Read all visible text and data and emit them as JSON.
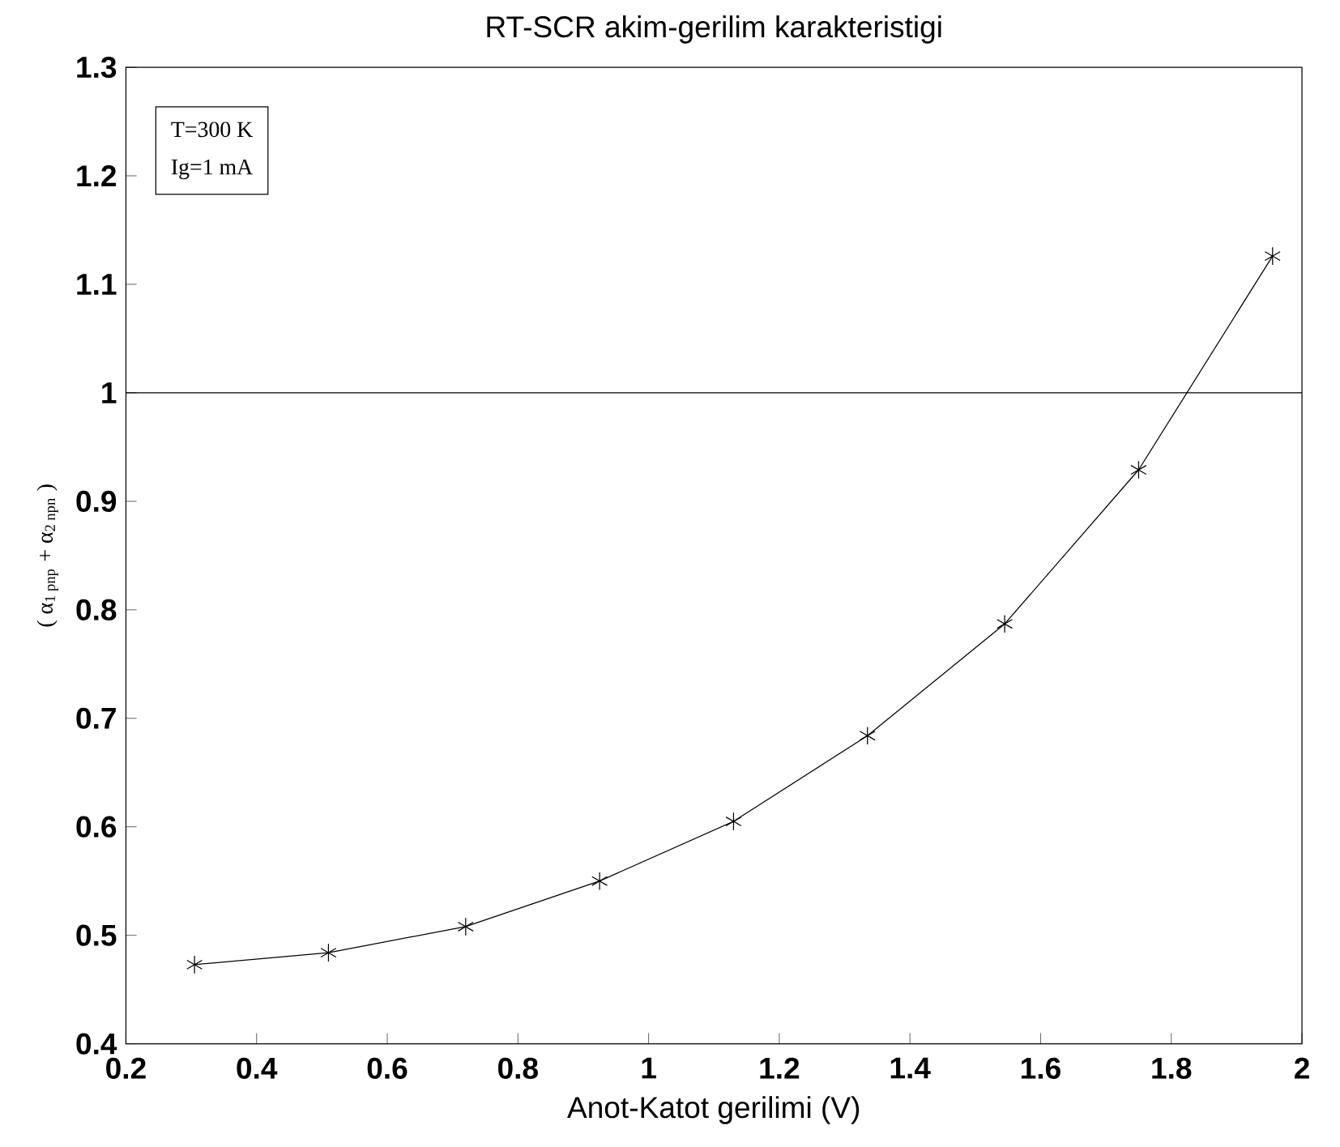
{
  "chart_data": {
    "type": "line",
    "title": "RT-SCR akim-gerilim karakteristigi",
    "xlabel": "Anot-Katot gerilimi (V)",
    "ylabel": "( α$_{1 pnp}$ + α$_{2 npn}$ )",
    "x": [
      0.305,
      0.51,
      0.72,
      0.925,
      1.13,
      1.335,
      1.545,
      1.75,
      1.955
    ],
    "series": [
      {
        "color": "#000000",
        "values": [
          0.473,
          0.484,
          0.508,
          0.55,
          0.605,
          0.684,
          0.787,
          0.929,
          1.126
        ]
      }
    ],
    "xlim": [
      0.2,
      2
    ],
    "xticks": [
      0.2,
      0.4,
      0.6,
      0.8,
      1,
      1.2,
      1.4,
      1.6,
      1.8,
      2
    ],
    "ylim": [
      0.4,
      1.3
    ],
    "yticks": [
      0.4,
      0.5,
      0.6,
      0.7,
      0.8,
      0.9,
      1,
      1.1,
      1.2,
      1.3
    ],
    "ref_lines": [
      {
        "axis": "y",
        "value": 1,
        "color": "#000000"
      }
    ],
    "annotations": [
      "T=300 K",
      "Ig=1 mA"
    ],
    "marker": "cross",
    "line_style": "solid",
    "grid": false
  }
}
